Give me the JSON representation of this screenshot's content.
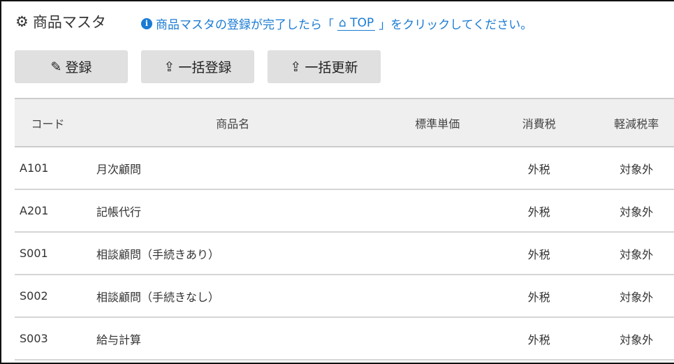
{
  "header": {
    "title": "商品マスタ",
    "title_icon": "gear-icon",
    "info_prefix": "商品マスタの登録が完了したら「",
    "info_link": "TOP",
    "info_suffix": "」をクリックしてください。",
    "info_icon": "info-circle-icon",
    "link_icon": "home-icon",
    "accent": "#1a7bd4"
  },
  "toolbar": {
    "register": "登録",
    "bulk_register": "一括登録",
    "bulk_update": "一括更新"
  },
  "table": {
    "columns": [
      "コード",
      "商品名",
      "標準単価",
      "消費税",
      "軽減税率"
    ],
    "rows": [
      {
        "code": "A101",
        "name": "月次顧問",
        "price": "",
        "tax": "外税",
        "reduced": "対象外"
      },
      {
        "code": "A201",
        "name": "記帳代行",
        "price": "",
        "tax": "外税",
        "reduced": "対象外"
      },
      {
        "code": "S001",
        "name": "相談顧問（手続きあり）",
        "price": "",
        "tax": "外税",
        "reduced": "対象外"
      },
      {
        "code": "S002",
        "name": "相談顧問（手続きなし）",
        "price": "",
        "tax": "外税",
        "reduced": "対象外"
      },
      {
        "code": "S003",
        "name": "給与計算",
        "price": "",
        "tax": "外税",
        "reduced": "対象外"
      }
    ]
  }
}
